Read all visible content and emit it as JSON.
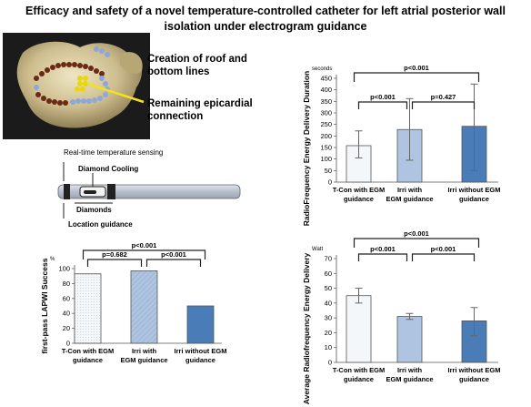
{
  "title": {
    "line1": "Efficacy and safety of a novel temperature-controlled catheter for left atrial posterior wall",
    "line2": "isolation under electrogram guidance"
  },
  "heart_annotations": {
    "roof_lines": [
      "Creation of roof and",
      "bottom lines"
    ],
    "epicardial": [
      "Remaining epicardial",
      "connection"
    ]
  },
  "catheter_labels": {
    "temperature_sensing": "Real-time temperature sensing",
    "diamond_cooling": "Diamond Cooling",
    "diamonds": "Diamonds",
    "location_guidance": "Location guidance"
  },
  "colors": {
    "tcon": "#f4f7fa",
    "irri_egm": "#aec4e0",
    "irri_no_egm": "#4a7cb8"
  },
  "chart_data": [
    {
      "id": "rf-duration",
      "type": "bar",
      "ylabel": "RadioFrequency Energy Delivery Duration",
      "unit": "seconds",
      "ylim": [
        0,
        450
      ],
      "yticks": [
        0,
        50,
        100,
        150,
        200,
        250,
        300,
        350,
        400,
        450
      ],
      "categories": [
        [
          "T-Con with EGM",
          "guidance"
        ],
        [
          "Irri with",
          "EGM guidance"
        ],
        [
          "Irri without EGM",
          "guidance"
        ]
      ],
      "values": [
        158,
        228,
        242
      ],
      "error_low": [
        105,
        95,
        50
      ],
      "error_high": [
        222,
        362,
        425
      ],
      "comparisons": [
        {
          "from": 0,
          "to": 1,
          "label": "p<0.001"
        },
        {
          "from": 1,
          "to": 2,
          "label": "p=0.427"
        },
        {
          "from": 0,
          "to": 2,
          "label": "p<0.001"
        }
      ]
    },
    {
      "id": "rf-power",
      "type": "bar",
      "ylabel": "Average Radiofrequency Energy Delivery",
      "unit": "Watt",
      "ylim": [
        0,
        70
      ],
      "yticks": [
        0,
        10,
        20,
        30,
        40,
        50,
        60,
        70
      ],
      "categories": [
        [
          "T-Con with EGM",
          "guidance"
        ],
        [
          "Irri with",
          "EGM guidance"
        ],
        [
          "Irri without EGM",
          "guidance"
        ]
      ],
      "values": [
        45,
        31,
        28
      ],
      "error_low": [
        40,
        29,
        18
      ],
      "error_high": [
        50,
        33,
        37
      ],
      "comparisons": [
        {
          "from": 0,
          "to": 1,
          "label": "p<0.001"
        },
        {
          "from": 1,
          "to": 2,
          "label": "p<0.001"
        },
        {
          "from": 0,
          "to": 2,
          "label": "p<0.001"
        }
      ]
    },
    {
      "id": "lapwi-success",
      "type": "bar",
      "ylabel": "first-pass LAPWI Success",
      "unit": "%",
      "ylim": [
        0,
        100
      ],
      "yticks": [
        0,
        20,
        40,
        60,
        80,
        100
      ],
      "categories": [
        [
          "T-Con with EGM",
          "guidance"
        ],
        [
          "Irri with",
          "EGM guidance"
        ],
        [
          "Irri without EGM",
          "guidance"
        ]
      ],
      "values": [
        93,
        97,
        50
      ],
      "comparisons": [
        {
          "from": 0,
          "to": 1,
          "label": "p=0.682"
        },
        {
          "from": 1,
          "to": 2,
          "label": "p<0.001"
        },
        {
          "from": 0,
          "to": 2,
          "label": "p<0.001"
        }
      ]
    }
  ]
}
